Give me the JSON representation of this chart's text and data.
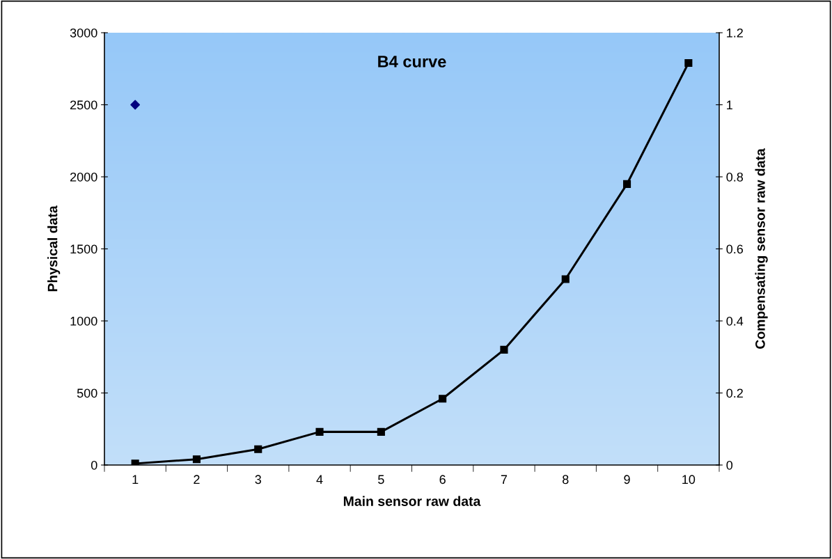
{
  "chart_data": {
    "type": "line",
    "title": "B4 curve",
    "xlabel": "Main sensor raw data",
    "ylabel": "Physical data",
    "y2label": "Compensating sensor raw data",
    "categories": [
      "1",
      "2",
      "3",
      "4",
      "5",
      "6",
      "7",
      "8",
      "9",
      "10"
    ],
    "series": [
      {
        "color": "#000000",
        "values": [
          10,
          40,
          110,
          230,
          230,
          460,
          800,
          1290,
          1950,
          2790
        ],
        "marker": "square"
      },
      {
        "type": "scatter",
        "axis": "y2",
        "color": "#000080",
        "values": [
          1,
          null,
          null,
          null,
          null,
          null,
          null,
          null,
          null,
          null
        ],
        "marker": "diamond"
      }
    ],
    "ylim": [
      0,
      3000
    ],
    "yticks": [
      0,
      500,
      1000,
      1500,
      2000,
      2500,
      3000
    ],
    "y2lim": [
      0,
      1.2
    ],
    "y2ticks": [
      0,
      0.2,
      0.4,
      0.6,
      0.8,
      1,
      1.2
    ],
    "grid": false
  }
}
